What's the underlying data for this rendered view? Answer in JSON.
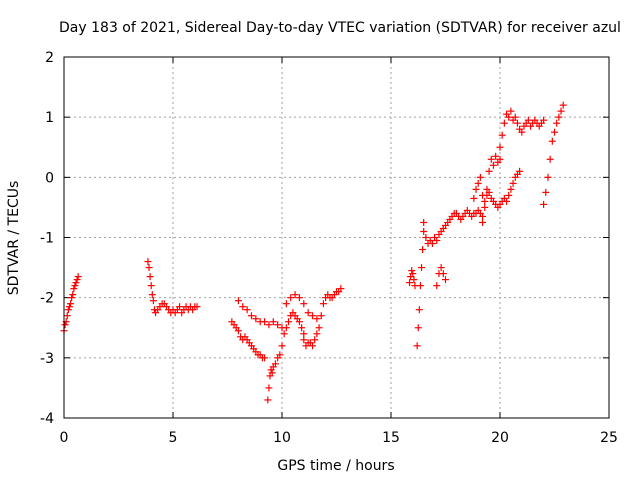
{
  "chart_data": {
    "type": "scatter",
    "title": "Day 183 of 2021, Sidereal Day-to-day VTEC variation (SDTVAR) for receiver azul",
    "xlabel": "GPS time / hours",
    "ylabel": "SDTVAR / TECUs",
    "xlim": [
      0,
      25
    ],
    "ylim": [
      -4,
      2
    ],
    "grid": true,
    "marker": "+",
    "color": "#ff0000",
    "x_ticks": [
      0,
      5,
      10,
      15,
      20,
      25
    ],
    "x_tick_labels": [
      "0",
      "5",
      "10",
      "15",
      "20",
      "25"
    ],
    "y_ticks": [
      -4,
      -3,
      -2,
      -1,
      0,
      1,
      2
    ],
    "y_tick_labels": [
      "-4",
      "-3",
      "-2",
      "-1",
      "0",
      "1",
      "2"
    ],
    "series": [
      {
        "name": "SDTVAR",
        "x": [
          0.0,
          0.05,
          0.1,
          0.15,
          0.2,
          0.25,
          0.3,
          0.35,
          0.4,
          0.45,
          0.5,
          0.55,
          0.6,
          0.65,
          3.85,
          3.9,
          3.95,
          4.0,
          4.05,
          4.1,
          4.15,
          4.2,
          4.3,
          4.4,
          4.5,
          4.6,
          4.7,
          4.8,
          4.9,
          5.0,
          5.1,
          5.2,
          5.3,
          5.4,
          5.5,
          5.6,
          5.7,
          5.8,
          5.9,
          6.0,
          6.1,
          7.7,
          7.8,
          7.9,
          8.0,
          8.1,
          8.2,
          8.3,
          8.4,
          8.5,
          8.6,
          8.7,
          8.8,
          8.9,
          9.0,
          9.1,
          9.2,
          8.0,
          8.2,
          8.4,
          8.6,
          8.8,
          9.0,
          9.2,
          9.4,
          9.6,
          9.8,
          10.0,
          9.35,
          9.4,
          9.45,
          9.5,
          9.55,
          9.6,
          9.7,
          9.8,
          9.9,
          10.0,
          10.1,
          10.2,
          10.3,
          10.4,
          10.5,
          10.6,
          10.7,
          10.8,
          10.9,
          11.0,
          10.2,
          10.4,
          10.6,
          10.8,
          11.0,
          11.2,
          11.4,
          11.6,
          11.0,
          11.1,
          11.2,
          11.3,
          11.4,
          11.5,
          11.6,
          11.7,
          11.8,
          11.9,
          12.0,
          12.1,
          12.2,
          12.3,
          12.4,
          12.5,
          12.6,
          12.7,
          15.85,
          15.9,
          15.95,
          16.0,
          16.05,
          16.1,
          16.2,
          16.25,
          16.3,
          16.35,
          16.4,
          16.45,
          16.5,
          16.5,
          16.6,
          16.7,
          16.8,
          16.9,
          17.0,
          17.1,
          17.2,
          17.3,
          17.4,
          17.5,
          17.6,
          17.7,
          17.8,
          17.9,
          18.0,
          18.1,
          18.2,
          18.3,
          18.4,
          18.5,
          18.6,
          18.7,
          18.8,
          18.9,
          19.0,
          19.1,
          19.2,
          17.1,
          17.2,
          17.3,
          17.4,
          17.5,
          18.8,
          18.9,
          19.0,
          19.1,
          19.2,
          19.3,
          19.4,
          19.5,
          19.6,
          19.7,
          19.8,
          19.9,
          20.0,
          20.1,
          20.2,
          20.3,
          20.4,
          20.5,
          20.6,
          20.7,
          20.8,
          20.9,
          19.2,
          19.3,
          19.4,
          19.5,
          19.6,
          19.7,
          19.8,
          19.9,
          20.0,
          20.0,
          20.1,
          20.2,
          20.3,
          20.4,
          20.5,
          20.6,
          20.7,
          20.8,
          20.9,
          21.0,
          21.1,
          21.2,
          21.3,
          21.4,
          21.5,
          21.6,
          21.7,
          21.8,
          21.9,
          22.0,
          22.0,
          22.1,
          22.2,
          22.3,
          22.4,
          22.5,
          22.6,
          22.7,
          22.8,
          22.9
        ],
        "y": [
          -2.55,
          -2.45,
          -2.4,
          -2.3,
          -2.2,
          -2.15,
          -2.1,
          -2.0,
          -1.95,
          -1.85,
          -1.8,
          -1.75,
          -1.7,
          -1.65,
          -1.4,
          -1.5,
          -1.65,
          -1.8,
          -1.95,
          -2.05,
          -2.2,
          -2.25,
          -2.2,
          -2.15,
          -2.1,
          -2.1,
          -2.15,
          -2.2,
          -2.25,
          -2.2,
          -2.25,
          -2.2,
          -2.15,
          -2.25,
          -2.2,
          -2.15,
          -2.2,
          -2.15,
          -2.2,
          -2.15,
          -2.15,
          -2.4,
          -2.45,
          -2.5,
          -2.55,
          -2.65,
          -2.7,
          -2.65,
          -2.7,
          -2.75,
          -2.8,
          -2.85,
          -2.9,
          -2.95,
          -2.95,
          -3.0,
          -3.0,
          -2.05,
          -2.15,
          -2.2,
          -2.3,
          -2.35,
          -2.4,
          -2.4,
          -2.45,
          -2.4,
          -2.45,
          -2.5,
          -3.7,
          -3.5,
          -3.3,
          -3.2,
          -3.25,
          -3.15,
          -3.1,
          -3.0,
          -2.95,
          -2.8,
          -2.6,
          -2.5,
          -2.4,
          -2.3,
          -2.25,
          -2.3,
          -2.35,
          -2.4,
          -2.5,
          -2.6,
          -2.1,
          -2.0,
          -1.95,
          -2.0,
          -2.1,
          -2.25,
          -2.3,
          -2.35,
          -2.7,
          -2.8,
          -2.75,
          -2.75,
          -2.8,
          -2.7,
          -2.6,
          -2.5,
          -2.3,
          -2.1,
          -2.0,
          -1.95,
          -2.0,
          -2.0,
          -1.95,
          -1.9,
          -1.9,
          -1.85,
          -1.75,
          -1.65,
          -1.55,
          -1.6,
          -1.7,
          -1.8,
          -2.8,
          -2.5,
          -2.2,
          -1.8,
          -1.5,
          -1.2,
          -0.75,
          -0.9,
          -1.0,
          -1.1,
          -1.05,
          -1.1,
          -1.0,
          -1.05,
          -0.95,
          -0.9,
          -0.85,
          -0.8,
          -0.75,
          -0.7,
          -0.65,
          -0.6,
          -0.6,
          -0.65,
          -0.7,
          -0.65,
          -0.6,
          -0.55,
          -0.6,
          -0.65,
          -0.6,
          -0.6,
          -0.55,
          -0.6,
          -0.65,
          -1.8,
          -1.6,
          -1.5,
          -1.6,
          -1.7,
          -0.35,
          -0.2,
          -0.1,
          0.0,
          -0.3,
          -0.4,
          -0.3,
          -0.25,
          -0.35,
          -0.4,
          -0.45,
          -0.5,
          -0.45,
          -0.4,
          -0.35,
          -0.4,
          -0.3,
          -0.2,
          -0.1,
          0.0,
          0.05,
          0.1,
          -0.75,
          -0.5,
          -0.2,
          0.1,
          0.3,
          0.2,
          0.35,
          0.25,
          0.3,
          0.5,
          0.7,
          0.9,
          1.05,
          1.0,
          1.1,
          0.95,
          1.0,
          0.9,
          0.8,
          0.75,
          0.85,
          0.9,
          0.95,
          0.85,
          0.9,
          0.95,
          0.9,
          0.85,
          0.9,
          0.95,
          -0.45,
          -0.25,
          0.0,
          0.3,
          0.6,
          0.75,
          0.9,
          1.0,
          1.1,
          1.2
        ]
      }
    ]
  }
}
